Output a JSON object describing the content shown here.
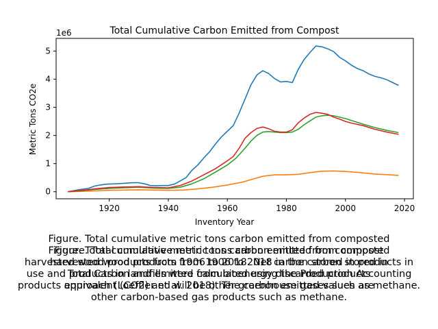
{
  "chart_data": {
    "type": "line",
    "title": "Total Cumulative Carbon Emitted from Compost",
    "xlabel": "Inventory Year",
    "ylabel": "Metric Tons CO2e",
    "scale_label": "1e6",
    "xlim": [
      1902,
      2023
    ],
    "ylim": [
      -0.25,
      5.45
    ],
    "x_ticks": [
      1920,
      1940,
      1960,
      1980,
      2000,
      2020
    ],
    "x_tick_labels": [
      "1920",
      "1940",
      "1960",
      "1980",
      "2000",
      "2020"
    ],
    "y_ticks": [
      0,
      1,
      2,
      3,
      4,
      5
    ],
    "y_tick_labels": [
      "0",
      "1",
      "2",
      "3",
      "4",
      "5"
    ],
    "grid": false,
    "legend": "none",
    "units_multiplier": 1000000,
    "series": [
      {
        "color": "#1f77b4",
        "points": [
          [
            1906,
            0.0
          ],
          [
            1908,
            0.04
          ],
          [
            1910,
            0.08
          ],
          [
            1913,
            0.12
          ],
          [
            1915,
            0.2
          ],
          [
            1917,
            0.24
          ],
          [
            1919,
            0.27
          ],
          [
            1922,
            0.28
          ],
          [
            1925,
            0.3
          ],
          [
            1928,
            0.32
          ],
          [
            1930,
            0.32
          ],
          [
            1932,
            0.28
          ],
          [
            1934,
            0.22
          ],
          [
            1936,
            0.21
          ],
          [
            1938,
            0.22
          ],
          [
            1940,
            0.22
          ],
          [
            1942,
            0.27
          ],
          [
            1944,
            0.38
          ],
          [
            1946,
            0.5
          ],
          [
            1948,
            0.76
          ],
          [
            1950,
            0.95
          ],
          [
            1952,
            1.2
          ],
          [
            1954,
            1.42
          ],
          [
            1956,
            1.7
          ],
          [
            1958,
            1.95
          ],
          [
            1960,
            2.15
          ],
          [
            1962,
            2.35
          ],
          [
            1964,
            2.8
          ],
          [
            1966,
            3.3
          ],
          [
            1968,
            3.8
          ],
          [
            1970,
            4.15
          ],
          [
            1972,
            4.3
          ],
          [
            1974,
            4.2
          ],
          [
            1976,
            4.02
          ],
          [
            1978,
            3.9
          ],
          [
            1980,
            3.92
          ],
          [
            1982,
            3.88
          ],
          [
            1984,
            4.35
          ],
          [
            1986,
            4.7
          ],
          [
            1988,
            4.95
          ],
          [
            1990,
            5.18
          ],
          [
            1992,
            5.15
          ],
          [
            1994,
            5.08
          ],
          [
            1996,
            4.98
          ],
          [
            1998,
            4.78
          ],
          [
            2000,
            4.65
          ],
          [
            2002,
            4.5
          ],
          [
            2004,
            4.38
          ],
          [
            2006,
            4.3
          ],
          [
            2008,
            4.18
          ],
          [
            2010,
            4.1
          ],
          [
            2012,
            4.05
          ],
          [
            2014,
            3.98
          ],
          [
            2016,
            3.88
          ],
          [
            2018,
            3.78
          ]
        ]
      },
      {
        "color": "#ff7f0e",
        "points": [
          [
            1906,
            0.0
          ],
          [
            1910,
            0.01
          ],
          [
            1915,
            0.03
          ],
          [
            1920,
            0.05
          ],
          [
            1925,
            0.06
          ],
          [
            1930,
            0.07
          ],
          [
            1935,
            0.06
          ],
          [
            1940,
            0.05
          ],
          [
            1945,
            0.06
          ],
          [
            1950,
            0.1
          ],
          [
            1955,
            0.16
          ],
          [
            1960,
            0.24
          ],
          [
            1965,
            0.34
          ],
          [
            1968,
            0.43
          ],
          [
            1972,
            0.55
          ],
          [
            1976,
            0.6
          ],
          [
            1980,
            0.6
          ],
          [
            1984,
            0.62
          ],
          [
            1988,
            0.68
          ],
          [
            1992,
            0.73
          ],
          [
            1996,
            0.74
          ],
          [
            2000,
            0.72
          ],
          [
            2005,
            0.68
          ],
          [
            2010,
            0.63
          ],
          [
            2015,
            0.6
          ],
          [
            2018,
            0.58
          ]
        ]
      },
      {
        "color": "#2ca02c",
        "points": [
          [
            1906,
            0.0
          ],
          [
            1910,
            0.03
          ],
          [
            1915,
            0.08
          ],
          [
            1920,
            0.12
          ],
          [
            1925,
            0.14
          ],
          [
            1930,
            0.16
          ],
          [
            1935,
            0.13
          ],
          [
            1940,
            0.12
          ],
          [
            1944,
            0.16
          ],
          [
            1948,
            0.28
          ],
          [
            1952,
            0.46
          ],
          [
            1956,
            0.7
          ],
          [
            1960,
            0.95
          ],
          [
            1963,
            1.2
          ],
          [
            1966,
            1.55
          ],
          [
            1968,
            1.8
          ],
          [
            1970,
            2.0
          ],
          [
            1972,
            2.12
          ],
          [
            1974,
            2.14
          ],
          [
            1976,
            2.12
          ],
          [
            1978,
            2.1
          ],
          [
            1980,
            2.1
          ],
          [
            1982,
            2.12
          ],
          [
            1984,
            2.22
          ],
          [
            1986,
            2.38
          ],
          [
            1988,
            2.52
          ],
          [
            1990,
            2.65
          ],
          [
            1992,
            2.7
          ],
          [
            1994,
            2.72
          ],
          [
            1996,
            2.7
          ],
          [
            1998,
            2.65
          ],
          [
            2000,
            2.6
          ],
          [
            2003,
            2.5
          ],
          [
            2006,
            2.4
          ],
          [
            2010,
            2.28
          ],
          [
            2014,
            2.18
          ],
          [
            2018,
            2.1
          ]
        ]
      },
      {
        "color": "#d62728",
        "points": [
          [
            1906,
            0.0
          ],
          [
            1910,
            0.04
          ],
          [
            1915,
            0.1
          ],
          [
            1920,
            0.15
          ],
          [
            1925,
            0.17
          ],
          [
            1930,
            0.18
          ],
          [
            1935,
            0.15
          ],
          [
            1940,
            0.14
          ],
          [
            1944,
            0.22
          ],
          [
            1948,
            0.38
          ],
          [
            1952,
            0.6
          ],
          [
            1956,
            0.82
          ],
          [
            1960,
            1.1
          ],
          [
            1962,
            1.25
          ],
          [
            1964,
            1.55
          ],
          [
            1966,
            1.9
          ],
          [
            1968,
            2.1
          ],
          [
            1970,
            2.25
          ],
          [
            1972,
            2.3
          ],
          [
            1974,
            2.24
          ],
          [
            1976,
            2.15
          ],
          [
            1978,
            2.12
          ],
          [
            1980,
            2.12
          ],
          [
            1982,
            2.2
          ],
          [
            1984,
            2.45
          ],
          [
            1986,
            2.62
          ],
          [
            1988,
            2.75
          ],
          [
            1990,
            2.82
          ],
          [
            1992,
            2.79
          ],
          [
            1994,
            2.75
          ],
          [
            1996,
            2.65
          ],
          [
            1998,
            2.58
          ],
          [
            2000,
            2.5
          ],
          [
            2002,
            2.44
          ],
          [
            2006,
            2.35
          ],
          [
            2010,
            2.22
          ],
          [
            2014,
            2.12
          ],
          [
            2018,
            2.04
          ]
        ]
      }
    ]
  },
  "caption": {
    "main": "Figure. Total cumulative metric tons carbon emitted from composted",
    "overlap_lines": [
      "Figure. Total cumulative metric tons carbon emitted from compost",
      "harvested wood products from 1906 to 2018. Net carbon stored in products in",
      "use and products in landfills were calculated using the Production Accounting",
      "approach (Loeffler et al. 2018). The carbon emitted values are",
      "Figure. Total cumulative metric tons carbon emitted from composted",
      "harvested wood products from 1906 to 2018 in the carbon stored in",
      "Total Carbon and emitted from bioenergy discarded products",
      "products equivalent (CO2) and will be other greenhouse gases such as methane.",
      "other carbon-based gas products such as methane."
    ]
  }
}
